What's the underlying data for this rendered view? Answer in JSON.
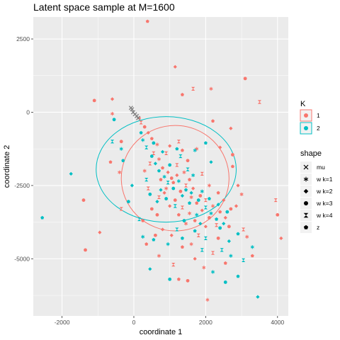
{
  "chart_data": {
    "type": "scatter",
    "title": "Latent space sample at M=1600",
    "xlabel": "coordinate 1",
    "ylabel": "coordinate 2",
    "xlim": [
      -2800,
      4300
    ],
    "ylim": [
      -6950,
      3250
    ],
    "x_ticks": [
      -2000,
      0,
      2000,
      4000
    ],
    "x_tick_labels": [
      "-2000",
      "0",
      "2000",
      "4000"
    ],
    "y_ticks": [
      2500,
      0,
      -2500,
      -5000
    ],
    "y_tick_labels": [
      "2500",
      "0",
      "-2500",
      "-5000"
    ],
    "grid": true,
    "legend_placement": "right",
    "colors": {
      "K1": "#F8766D",
      "K2": "#00BFC4",
      "mu": "#808080",
      "panel": "#EBEBEB",
      "grid": "#FFFFFF"
    },
    "legend_color": {
      "title": "K",
      "items": [
        {
          "label": "1",
          "color": "#F8766D"
        },
        {
          "label": "2",
          "color": "#00BFC4"
        }
      ]
    },
    "legend_shape": {
      "title": "shape",
      "items": [
        {
          "label": "mu",
          "shape": "cross"
        },
        {
          "label": "w k=1",
          "shape": "asterisk"
        },
        {
          "label": "w k=2",
          "shape": "diamond"
        },
        {
          "label": "w k=3",
          "shape": "circle"
        },
        {
          "label": "w k=4",
          "shape": "hourglass"
        },
        {
          "label": "z",
          "shape": "pentagon"
        }
      ]
    },
    "ellipses": [
      {
        "group": "1",
        "cx": 1150,
        "cy": -2250,
        "rx": 1500,
        "ry": 1800
      },
      {
        "group": "2",
        "cx": 900,
        "cy": -1950,
        "rx": 1950,
        "ry": 1800
      }
    ],
    "series": [
      {
        "name": "1",
        "points": [
          [
            380,
            3100
          ],
          [
            1150,
            1550
          ],
          [
            3100,
            1150
          ],
          [
            1650,
            800
          ],
          [
            2150,
            800
          ],
          [
            1350,
            600
          ],
          [
            -600,
            450
          ],
          [
            -1100,
            400
          ],
          [
            3500,
            350
          ],
          [
            -600,
            -50
          ],
          [
            2200,
            -300
          ],
          [
            2700,
            -550
          ],
          [
            -350,
            -1000
          ],
          [
            1250,
            -1000
          ],
          [
            1750,
            -1250
          ],
          [
            -650,
            -1700
          ],
          [
            2400,
            -1200
          ],
          [
            2750,
            -1450
          ],
          [
            450,
            -1750
          ],
          [
            -400,
            -2050
          ],
          [
            2750,
            -1850
          ],
          [
            2900,
            -2500
          ],
          [
            -1400,
            -3000
          ],
          [
            -350,
            -3300
          ],
          [
            3000,
            -2800
          ],
          [
            250,
            -3700
          ],
          [
            -950,
            -4100
          ],
          [
            -1350,
            -4700
          ],
          [
            3050,
            -4000
          ],
          [
            3150,
            -4250
          ],
          [
            3300,
            -4900
          ],
          [
            4100,
            -4300
          ],
          [
            4000,
            -3500
          ],
          [
            3950,
            -3000
          ],
          [
            2050,
            -6400
          ],
          [
            2550,
            -5150
          ],
          [
            1700,
            -5000
          ],
          [
            1500,
            -5750
          ],
          [
            1100,
            -5200
          ],
          [
            700,
            -4900
          ],
          [
            350,
            -4500
          ],
          [
            800,
            -4000
          ],
          [
            500,
            -3300
          ],
          [
            700,
            -2900
          ],
          [
            900,
            -2600
          ],
          [
            1100,
            -2400
          ],
          [
            1200,
            -2150
          ],
          [
            1300,
            -2700
          ],
          [
            1450,
            -2500
          ],
          [
            1600,
            -2900
          ],
          [
            1750,
            -3100
          ],
          [
            1900,
            -3350
          ],
          [
            2100,
            -3600
          ],
          [
            2300,
            -3850
          ],
          [
            1450,
            -3800
          ],
          [
            1250,
            -3500
          ],
          [
            1000,
            -3200
          ],
          [
            650,
            -3500
          ],
          [
            550,
            -1400
          ],
          [
            700,
            -1600
          ],
          [
            800,
            -1900
          ],
          [
            950,
            -2050
          ],
          [
            1050,
            -2250
          ],
          [
            1200,
            -1800
          ],
          [
            1400,
            -2050
          ],
          [
            1550,
            -2300
          ],
          [
            1650,
            -2600
          ],
          [
            1850,
            -2850
          ],
          [
            2000,
            -3000
          ],
          [
            2200,
            -3200
          ],
          [
            2400,
            -3400
          ],
          [
            2550,
            -3600
          ],
          [
            2650,
            -3900
          ],
          [
            1800,
            -4200
          ],
          [
            1600,
            -4500
          ],
          [
            1350,
            -4600
          ],
          [
            1050,
            -4200
          ],
          [
            600,
            -4200
          ],
          [
            400,
            -2600
          ],
          [
            300,
            -2000
          ],
          [
            1350,
            -1300
          ],
          [
            1000,
            -1150
          ],
          [
            1500,
            -1650
          ],
          [
            1900,
            -2100
          ],
          [
            2100,
            -2500
          ],
          [
            2350,
            -2750
          ],
          [
            2500,
            -3000
          ],
          [
            2700,
            -3300
          ],
          [
            900,
            -1400
          ],
          [
            650,
            -1100
          ],
          [
            500,
            -900
          ],
          [
            400,
            -700
          ],
          [
            300,
            -500
          ],
          [
            200,
            -350
          ],
          [
            150,
            -200
          ],
          [
            750,
            -2300
          ],
          [
            850,
            -2750
          ],
          [
            1150,
            -3000
          ],
          [
            1350,
            -3250
          ],
          [
            1550,
            -3450
          ],
          [
            1700,
            -3700
          ],
          [
            2000,
            -3900
          ],
          [
            2350,
            -4300
          ],
          [
            2200,
            -4800
          ],
          [
            1950,
            -5300
          ],
          [
            1250,
            -5700
          ],
          [
            2850,
            -3200
          ]
        ]
      },
      {
        "name": "2",
        "points": [
          [
            -2550,
            -3600
          ],
          [
            -1750,
            -2100
          ],
          [
            -550,
            -250
          ],
          [
            -600,
            -1000
          ],
          [
            -350,
            -1250
          ],
          [
            -300,
            -1650
          ],
          [
            -50,
            -2500
          ],
          [
            -150,
            -3050
          ],
          [
            150,
            -3650
          ],
          [
            250,
            -4250
          ],
          [
            550,
            -4350
          ],
          [
            450,
            -5350
          ],
          [
            1000,
            -5700
          ],
          [
            1900,
            -4700
          ],
          [
            2200,
            -5450
          ],
          [
            2900,
            -5600
          ],
          [
            3450,
            -6300
          ],
          [
            2550,
            -5800
          ],
          [
            3050,
            -5050
          ],
          [
            3300,
            -4600
          ],
          [
            2900,
            -4150
          ],
          [
            2650,
            -4400
          ],
          [
            2400,
            -3950
          ],
          [
            2000,
            -4300
          ],
          [
            1750,
            -3500
          ],
          [
            1550,
            -3100
          ],
          [
            1350,
            -2850
          ],
          [
            1100,
            -2600
          ],
          [
            950,
            -2400
          ],
          [
            850,
            -2200
          ],
          [
            700,
            -2000
          ],
          [
            600,
            -1750
          ],
          [
            500,
            -1500
          ],
          [
            350,
            -1200
          ],
          [
            250,
            -950
          ],
          [
            200,
            -700
          ],
          [
            750,
            -2650
          ],
          [
            900,
            -2950
          ],
          [
            1150,
            -3200
          ],
          [
            1250,
            -2350
          ],
          [
            1450,
            -2650
          ],
          [
            1600,
            -2750
          ],
          [
            1800,
            -3000
          ],
          [
            2000,
            -3250
          ],
          [
            2150,
            -3450
          ],
          [
            2300,
            -3650
          ],
          [
            2500,
            -3800
          ],
          [
            1000,
            -1800
          ],
          [
            1300,
            -1500
          ],
          [
            1700,
            -1300
          ],
          [
            2000,
            -1050
          ],
          [
            2150,
            -1700
          ],
          [
            1400,
            -3700
          ],
          [
            1200,
            -4000
          ],
          [
            950,
            -4500
          ],
          [
            1700,
            -4050
          ],
          [
            650,
            -3050
          ],
          [
            450,
            -2800
          ],
          [
            350,
            -2300
          ],
          [
            1900,
            -2700
          ],
          [
            2100,
            -2950
          ],
          [
            2350,
            -3150
          ],
          [
            2600,
            -3400
          ],
          [
            1500,
            -1950
          ],
          [
            1650,
            -2150
          ],
          [
            1200,
            -1250
          ],
          [
            800,
            -1350
          ],
          [
            550,
            -1050
          ],
          [
            2450,
            -4700
          ],
          [
            2700,
            -4900
          ],
          [
            1350,
            -4300
          ],
          [
            1850,
            -3800
          ]
        ]
      }
    ],
    "mu_points": [
      [
        -50,
        100
      ],
      [
        -20,
        0
      ],
      [
        30,
        -70
      ],
      [
        80,
        -130
      ],
      [
        -80,
        150
      ],
      [
        120,
        -200
      ]
    ]
  }
}
